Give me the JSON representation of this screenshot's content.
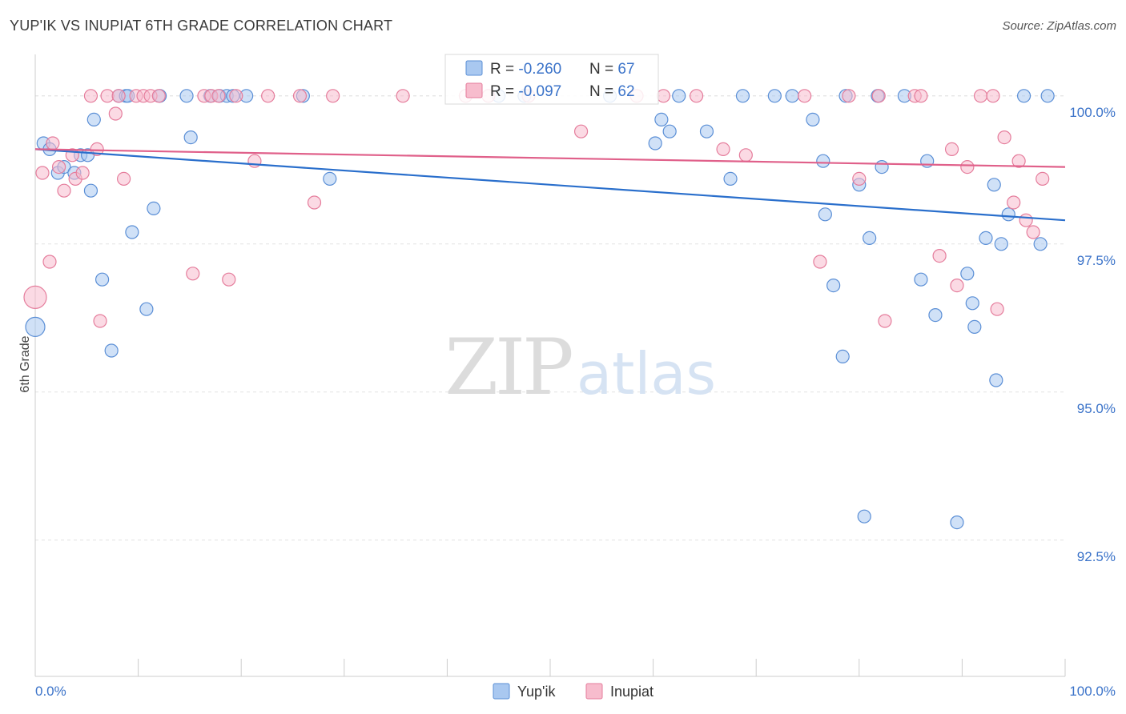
{
  "header": {
    "title": "YUP'IK VS INUPIAT 6TH GRADE CORRELATION CHART",
    "source": "Source: ZipAtlas.com"
  },
  "watermark": {
    "zip": "ZIP",
    "atlas": "atlas"
  },
  "legend_box": {
    "rows": [
      {
        "r_label": "R = ",
        "r_value": "-0.260",
        "n_label": "N = ",
        "n_value": "67"
      },
      {
        "r_label": "R = ",
        "r_value": "-0.097",
        "n_label": "N = ",
        "n_value": "62"
      }
    ]
  },
  "bottom_legend": {
    "items": [
      "Yup'ik",
      "Inupiat"
    ]
  },
  "colors": {
    "yupik_fill": "#a9c8f0",
    "yupik_stroke": "#5b8fd6",
    "yupik_line": "#2a6fcc",
    "inupiat_fill": "#f7bccd",
    "inupiat_stroke": "#e57d9c",
    "inupiat_line": "#e0608a",
    "tick_label": "#3b73c9",
    "grid": "#e2e2e2"
  },
  "chart_data": {
    "type": "scatter",
    "title": "YUP'IK VS INUPIAT 6TH GRADE CORRELATION CHART",
    "xlabel": "",
    "ylabel": "6th Grade",
    "xlim": [
      0,
      100
    ],
    "ylim": [
      90.2,
      100.7
    ],
    "x_tick_labels": [
      "0.0%",
      "100.0%"
    ],
    "y_ticks": [
      92.5,
      95.0,
      97.5,
      100.0
    ],
    "y_tick_labels": [
      "92.5%",
      "95.0%",
      "97.5%",
      "100.0%"
    ],
    "grid": true,
    "legend_position": "top-center",
    "series": [
      {
        "name": "Yup'ik",
        "r": -0.26,
        "n": 67,
        "trend": {
          "x": [
            0,
            100
          ],
          "y": [
            99.1,
            97.9
          ]
        },
        "points": [
          [
            0.0,
            96.1,
            12
          ],
          [
            0.8,
            99.2,
            8
          ],
          [
            1.4,
            99.1,
            8
          ],
          [
            2.2,
            98.7,
            8
          ],
          [
            2.8,
            98.8,
            8
          ],
          [
            3.8,
            98.7,
            8
          ],
          [
            4.4,
            99.0,
            8
          ],
          [
            5.1,
            99.0,
            8
          ],
          [
            5.4,
            98.4,
            8
          ],
          [
            5.7,
            99.6,
            8
          ],
          [
            6.5,
            96.9,
            8
          ],
          [
            7.4,
            95.7,
            8
          ],
          [
            8.1,
            100.0,
            8
          ],
          [
            8.8,
            100.0,
            8
          ],
          [
            9.0,
            100.0,
            8
          ],
          [
            10.8,
            96.4,
            8
          ],
          [
            11.5,
            98.1,
            8
          ],
          [
            9.4,
            97.7,
            8
          ],
          [
            12.1,
            100.0,
            8
          ],
          [
            14.7,
            100.0,
            8
          ],
          [
            15.1,
            99.3,
            8
          ],
          [
            17.0,
            100.0,
            8
          ],
          [
            17.9,
            100.0,
            8
          ],
          [
            18.6,
            100.0,
            8
          ],
          [
            19.2,
            100.0,
            8
          ],
          [
            20.5,
            100.0,
            8
          ],
          [
            26.0,
            100.0,
            8
          ],
          [
            28.6,
            98.6,
            8
          ],
          [
            45.0,
            100.0,
            8
          ],
          [
            47.5,
            100.0,
            8
          ],
          [
            55.8,
            100.0,
            8
          ],
          [
            60.2,
            99.2,
            8
          ],
          [
            60.8,
            99.6,
            8
          ],
          [
            61.6,
            99.4,
            8
          ],
          [
            62.5,
            100.0,
            8
          ],
          [
            65.2,
            99.4,
            8
          ],
          [
            67.5,
            98.6,
            8
          ],
          [
            68.7,
            100.0,
            8
          ],
          [
            71.8,
            100.0,
            8
          ],
          [
            73.5,
            100.0,
            8
          ],
          [
            75.5,
            99.6,
            8
          ],
          [
            76.5,
            98.9,
            8
          ],
          [
            76.7,
            98.0,
            8
          ],
          [
            77.5,
            96.8,
            8
          ],
          [
            78.4,
            95.6,
            8
          ],
          [
            78.7,
            100.0,
            8
          ],
          [
            80.0,
            98.5,
            8
          ],
          [
            80.5,
            92.9,
            8
          ],
          [
            81.0,
            97.6,
            8
          ],
          [
            81.8,
            100.0,
            8
          ],
          [
            82.2,
            98.8,
            8
          ],
          [
            84.4,
            100.0,
            8
          ],
          [
            86.0,
            96.9,
            8
          ],
          [
            86.6,
            98.9,
            8
          ],
          [
            87.4,
            96.3,
            8
          ],
          [
            89.5,
            92.8,
            8
          ],
          [
            90.5,
            97.0,
            8
          ],
          [
            91.0,
            96.5,
            8
          ],
          [
            91.2,
            96.1,
            8
          ],
          [
            92.3,
            97.6,
            8
          ],
          [
            93.1,
            98.5,
            8
          ],
          [
            93.3,
            95.2,
            8
          ],
          [
            93.8,
            97.5,
            8
          ],
          [
            94.5,
            98.0,
            8
          ],
          [
            96.0,
            100.0,
            8
          ],
          [
            97.6,
            97.5,
            8
          ],
          [
            98.3,
            100.0,
            8
          ]
        ]
      },
      {
        "name": "Inupiat",
        "r": -0.097,
        "n": 62,
        "trend": {
          "x": [
            0,
            100
          ],
          "y": [
            99.1,
            98.8
          ]
        },
        "points": [
          [
            0.0,
            96.6,
            14
          ],
          [
            0.7,
            98.7,
            8
          ],
          [
            1.4,
            97.2,
            8
          ],
          [
            1.7,
            99.2,
            8
          ],
          [
            2.3,
            98.8,
            8
          ],
          [
            2.8,
            98.4,
            8
          ],
          [
            3.6,
            99.0,
            8
          ],
          [
            3.9,
            98.6,
            8
          ],
          [
            4.6,
            98.7,
            8
          ],
          [
            5.4,
            100.0,
            8
          ],
          [
            6.0,
            99.1,
            8
          ],
          [
            6.3,
            96.2,
            8
          ],
          [
            7.0,
            100.0,
            8
          ],
          [
            7.8,
            99.7,
            8
          ],
          [
            8.1,
            100.0,
            8
          ],
          [
            8.6,
            98.6,
            8
          ],
          [
            9.8,
            100.0,
            8
          ],
          [
            10.5,
            100.0,
            8
          ],
          [
            11.2,
            100.0,
            8
          ],
          [
            12.0,
            100.0,
            8
          ],
          [
            15.3,
            97.0,
            8
          ],
          [
            16.4,
            100.0,
            8
          ],
          [
            17.1,
            100.0,
            8
          ],
          [
            17.8,
            100.0,
            8
          ],
          [
            18.8,
            96.9,
            8
          ],
          [
            19.5,
            100.0,
            8
          ],
          [
            21.3,
            98.9,
            8
          ],
          [
            22.6,
            100.0,
            8
          ],
          [
            25.7,
            100.0,
            8
          ],
          [
            27.1,
            98.2,
            8
          ],
          [
            28.9,
            100.0,
            8
          ],
          [
            35.7,
            100.0,
            8
          ],
          [
            41.8,
            100.0,
            8
          ],
          [
            44.0,
            100.0,
            8
          ],
          [
            47.9,
            100.0,
            8
          ],
          [
            53.0,
            99.4,
            8
          ],
          [
            58.4,
            100.0,
            8
          ],
          [
            61.0,
            100.0,
            8
          ],
          [
            64.2,
            100.0,
            8
          ],
          [
            66.8,
            99.1,
            8
          ],
          [
            69.0,
            99.0,
            8
          ],
          [
            74.7,
            100.0,
            8
          ],
          [
            76.2,
            97.2,
            8
          ],
          [
            79.0,
            100.0,
            8
          ],
          [
            80.0,
            98.6,
            8
          ],
          [
            81.9,
            100.0,
            8
          ],
          [
            82.5,
            96.2,
            8
          ],
          [
            85.4,
            100.0,
            8
          ],
          [
            86.0,
            100.0,
            8
          ],
          [
            87.8,
            97.3,
            8
          ],
          [
            89.0,
            99.1,
            8
          ],
          [
            89.5,
            96.8,
            8
          ],
          [
            90.5,
            98.8,
            8
          ],
          [
            91.8,
            100.0,
            8
          ],
          [
            93.0,
            100.0,
            8
          ],
          [
            93.4,
            96.4,
            8
          ],
          [
            94.1,
            99.3,
            8
          ],
          [
            95.0,
            98.2,
            8
          ],
          [
            95.5,
            98.9,
            8
          ],
          [
            96.2,
            97.9,
            8
          ],
          [
            96.9,
            97.7,
            8
          ],
          [
            97.8,
            98.6,
            8
          ]
        ]
      }
    ]
  }
}
